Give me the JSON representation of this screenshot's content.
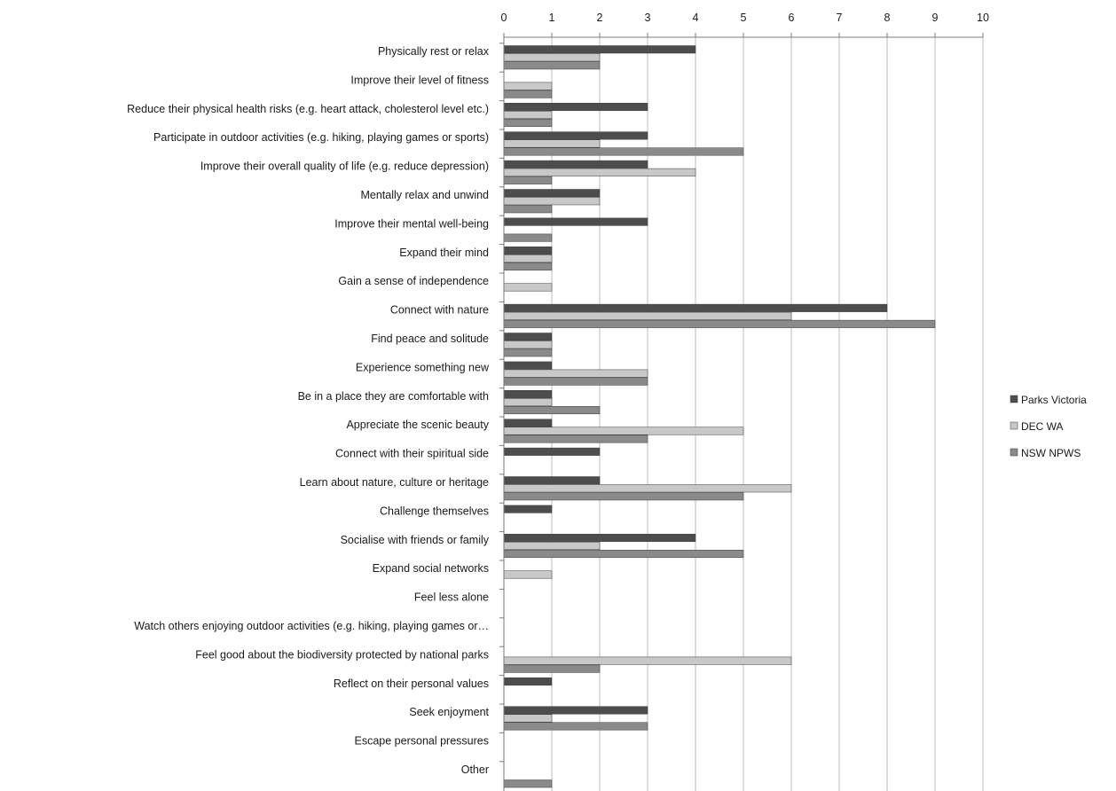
{
  "chart_data": {
    "type": "bar",
    "orientation": "horizontal",
    "title": "",
    "xlabel": "",
    "ylabel": "",
    "xlim": [
      0,
      10
    ],
    "x_ticks": [
      "0",
      "1",
      "2",
      "3",
      "4",
      "5",
      "6",
      "7",
      "8",
      "9",
      "10"
    ],
    "x_axis_position": "top",
    "grid": "vertical",
    "legend_position": "right",
    "categories": [
      "Physically rest or relax",
      "Improve their level of fitness",
      "Reduce their physical health risks (e.g. heart attack, cholesterol level etc.)",
      "Participate in outdoor activities (e.g. hiking, playing games or sports)",
      "Improve their overall quality of life (e.g. reduce depression)",
      "Mentally relax and unwind",
      "Improve their mental well-being",
      "Expand their mind",
      "Gain a sense of independence",
      "Connect with nature",
      "Find peace and solitude",
      "Experience something new",
      "Be in a place they are comfortable with",
      "Appreciate the scenic beauty",
      "Connect with their spiritual side",
      "Learn about nature, culture or heritage",
      "Challenge themselves",
      "Socialise with friends or family",
      "Expand social networks",
      "Feel less alone",
      "Watch others enjoying outdoor activities (e.g. hiking, playing games or…",
      "Feel good about the biodiversity protected by national parks",
      "Reflect on their personal values",
      "Seek enjoyment",
      "Escape personal pressures",
      "Other"
    ],
    "series": [
      {
        "name": "Parks Victoria",
        "color": "#4d4d4d",
        "values": [
          4,
          0,
          3,
          3,
          3,
          2,
          3,
          1,
          0,
          8,
          1,
          1,
          1,
          1,
          2,
          2,
          1,
          4,
          0,
          0,
          0,
          0,
          1,
          3,
          0,
          0
        ]
      },
      {
        "name": "DEC WA",
        "color": "#c8c8c8",
        "values": [
          2,
          1,
          1,
          2,
          4,
          2,
          0,
          1,
          1,
          6,
          1,
          3,
          1,
          5,
          0,
          6,
          0,
          2,
          1,
          0,
          0,
          6,
          0,
          1,
          0,
          0
        ]
      },
      {
        "name": "NSW NPWS",
        "color": "#8a8a8a",
        "values": [
          2,
          1,
          1,
          5,
          1,
          1,
          1,
          1,
          0,
          9,
          1,
          3,
          2,
          3,
          0,
          5,
          0,
          5,
          0,
          0,
          0,
          2,
          0,
          3,
          0,
          1
        ]
      }
    ]
  }
}
